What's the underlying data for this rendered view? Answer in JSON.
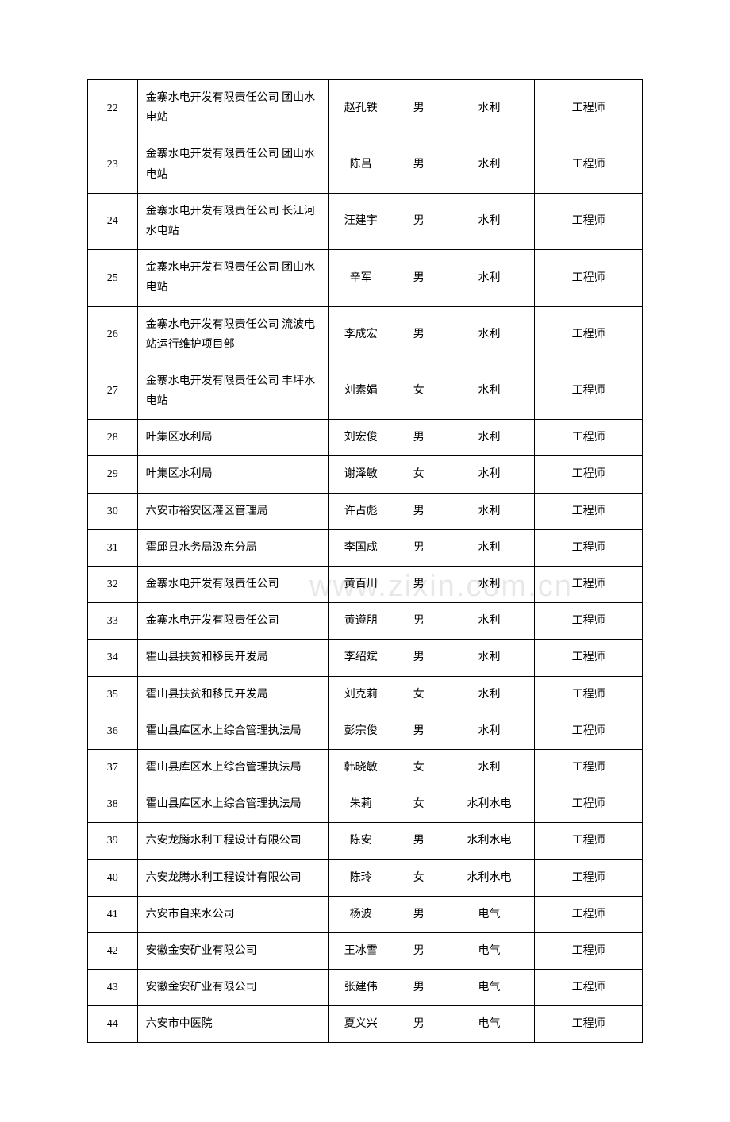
{
  "table": {
    "columns": {
      "num_width": 60,
      "org_width": 230,
      "name_width": 80,
      "gender_width": 60,
      "field_width": 110,
      "title_width": 130
    },
    "border_color": "#000000",
    "background_color": "#ffffff",
    "text_color": "#000000",
    "font_size": 14,
    "rows": [
      {
        "num": "22",
        "org": "金寨水电开发有限责任公司 团山水电站",
        "name": "赵孔铁",
        "gender": "男",
        "field": "水利",
        "title": "工程师"
      },
      {
        "num": "23",
        "org": "金寨水电开发有限责任公司 团山水电站",
        "name": "陈吕",
        "gender": "男",
        "field": "水利",
        "title": "工程师"
      },
      {
        "num": "24",
        "org": "金寨水电开发有限责任公司 长江河水电站",
        "name": "汪建宇",
        "gender": "男",
        "field": "水利",
        "title": "工程师"
      },
      {
        "num": "25",
        "org": "金寨水电开发有限责任公司 团山水电站",
        "name": "辛军",
        "gender": "男",
        "field": "水利",
        "title": "工程师"
      },
      {
        "num": "26",
        "org": "金寨水电开发有限责任公司 流波电站运行维护项目部",
        "name": "李成宏",
        "gender": "男",
        "field": "水利",
        "title": "工程师"
      },
      {
        "num": "27",
        "org": "金寨水电开发有限责任公司 丰坪水电站",
        "name": "刘素娟",
        "gender": "女",
        "field": "水利",
        "title": "工程师"
      },
      {
        "num": "28",
        "org": "叶集区水利局",
        "name": "刘宏俊",
        "gender": "男",
        "field": "水利",
        "title": "工程师"
      },
      {
        "num": "29",
        "org": "叶集区水利局",
        "name": "谢泽敏",
        "gender": "女",
        "field": "水利",
        "title": "工程师"
      },
      {
        "num": "30",
        "org": "六安市裕安区灌区管理局",
        "name": "许占彪",
        "gender": "男",
        "field": "水利",
        "title": "工程师"
      },
      {
        "num": "31",
        "org": "霍邱县水务局汲东分局",
        "name": "李国成",
        "gender": "男",
        "field": "水利",
        "title": "工程师"
      },
      {
        "num": "32",
        "org": "金寨水电开发有限责任公司",
        "name": "黄百川",
        "gender": "男",
        "field": "水利",
        "title": "工程师"
      },
      {
        "num": "33",
        "org": "金寨水电开发有限责任公司",
        "name": "黄遵朋",
        "gender": "男",
        "field": "水利",
        "title": "工程师"
      },
      {
        "num": "34",
        "org": "霍山县扶贫和移民开发局",
        "name": "李绍斌",
        "gender": "男",
        "field": "水利",
        "title": "工程师"
      },
      {
        "num": "35",
        "org": "霍山县扶贫和移民开发局",
        "name": "刘克莉",
        "gender": "女",
        "field": "水利",
        "title": "工程师"
      },
      {
        "num": "36",
        "org": "霍山县库区水上综合管理执法局",
        "name": "彭宗俊",
        "gender": "男",
        "field": "水利",
        "title": "工程师"
      },
      {
        "num": "37",
        "org": "霍山县库区水上综合管理执法局",
        "name": "韩晓敏",
        "gender": "女",
        "field": "水利",
        "title": "工程师"
      },
      {
        "num": "38",
        "org": "霍山县库区水上综合管理执法局",
        "name": "朱莉",
        "gender": "女",
        "field": "水利水电",
        "title": "工程师"
      },
      {
        "num": "39",
        "org": "六安龙腾水利工程设计有限公司",
        "name": "陈安",
        "gender": "男",
        "field": "水利水电",
        "title": "工程师"
      },
      {
        "num": "40",
        "org": "六安龙腾水利工程设计有限公司",
        "name": "陈玲",
        "gender": "女",
        "field": "水利水电",
        "title": "工程师"
      },
      {
        "num": "41",
        "org": "六安市自来水公司",
        "name": "杨波",
        "gender": "男",
        "field": "电气",
        "title": "工程师"
      },
      {
        "num": "42",
        "org": "安徽金安矿业有限公司",
        "name": "王冰雪",
        "gender": "男",
        "field": "电气",
        "title": "工程师"
      },
      {
        "num": "43",
        "org": "安徽金安矿业有限公司",
        "name": "张建伟",
        "gender": "男",
        "field": "电气",
        "title": "工程师"
      },
      {
        "num": "44",
        "org": "六安市中医院",
        "name": "夏义兴",
        "gender": "男",
        "field": "电气",
        "title": "工程师"
      }
    ]
  },
  "watermark": {
    "text": "www.zixin.com.cn",
    "color": "#e8e8e8",
    "font_size": 38
  }
}
